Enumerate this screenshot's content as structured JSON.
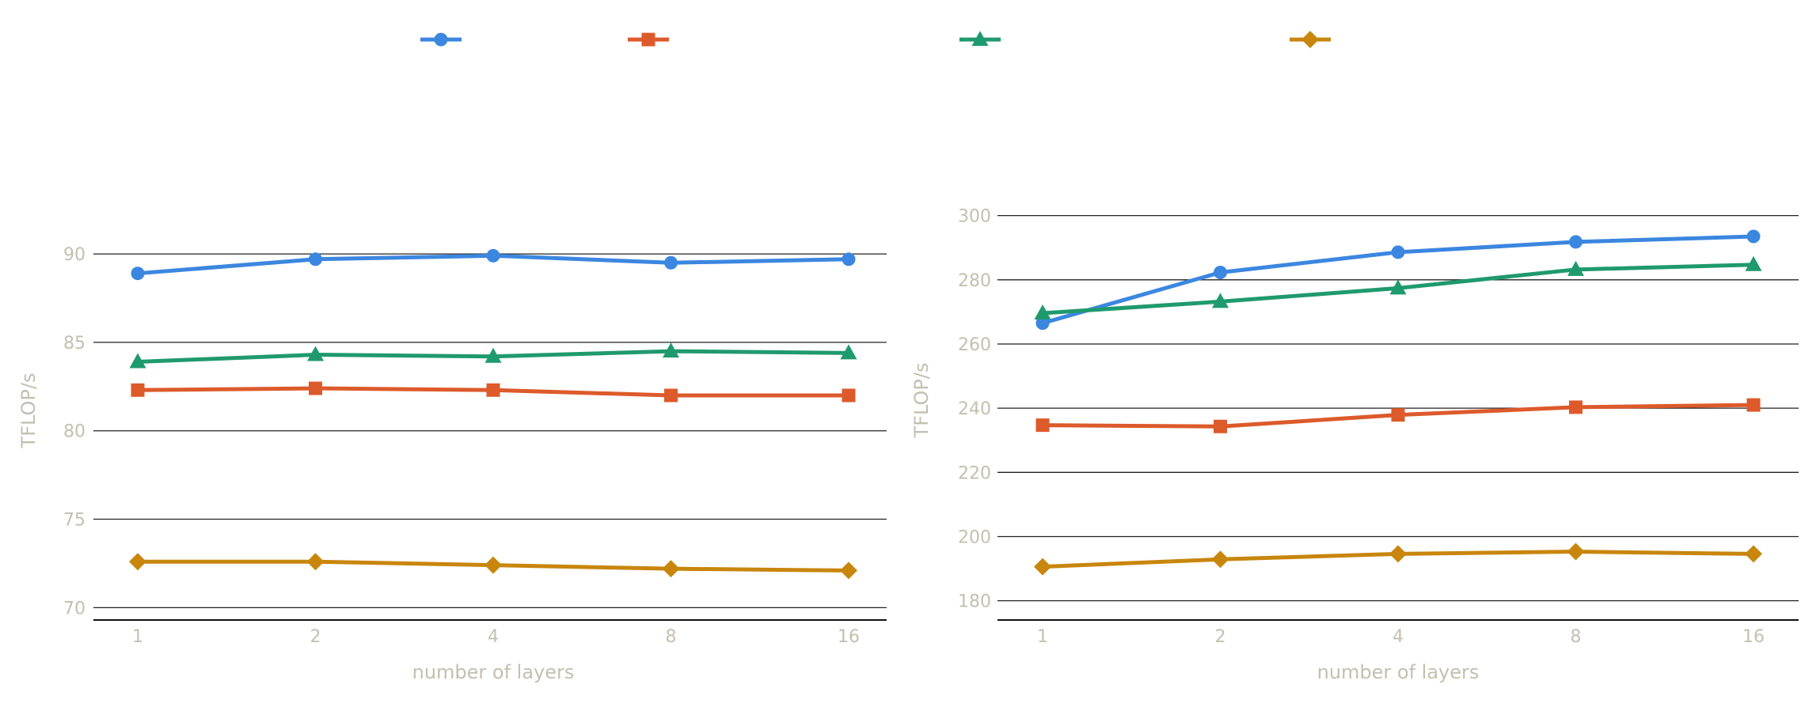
{
  "legend": {
    "items": [
      {
        "name": "",
        "marker": "circle",
        "color": "#3b87e0"
      },
      {
        "name": "",
        "marker": "square",
        "color": "#dd5a2b"
      },
      {
        "name": "",
        "marker": "triangle",
        "color": "#1f9a6e"
      },
      {
        "name": "",
        "marker": "diamond",
        "color": "#c8860d"
      }
    ]
  },
  "chart_data": [
    {
      "type": "line",
      "categories": [
        "1",
        "2",
        "4",
        "8",
        "16"
      ],
      "xlabel": "number of layers",
      "ylabel": "TFLOP/s",
      "ylim": [
        69.3,
        93
      ],
      "yticks": [
        70,
        75,
        80,
        85,
        90
      ],
      "grid": true,
      "legend_position": "top",
      "series": [
        {
          "marker": "circle",
          "color": "#3b87e0",
          "values": [
            88.9,
            89.7,
            89.9,
            89.5,
            89.7
          ]
        },
        {
          "marker": "square",
          "color": "#dd5a2b",
          "values": [
            82.3,
            82.4,
            82.3,
            82.0,
            82.0
          ]
        },
        {
          "marker": "triangle",
          "color": "#1f9a6e",
          "values": [
            83.9,
            84.3,
            84.2,
            84.5,
            84.4
          ]
        },
        {
          "marker": "diamond",
          "color": "#c8860d",
          "values": [
            72.6,
            72.6,
            72.4,
            72.2,
            72.1
          ]
        }
      ]
    },
    {
      "type": "line",
      "categories": [
        "1",
        "2",
        "4",
        "8",
        "16"
      ],
      "xlabel": "number of layers",
      "ylabel": "TFLOP/s",
      "ylim": [
        174,
        311
      ],
      "yticks": [
        180,
        200,
        220,
        240,
        260,
        280,
        300
      ],
      "grid": true,
      "legend_position": "top",
      "series": [
        {
          "marker": "circle",
          "color": "#3b87e0",
          "values": [
            266.5,
            282.3,
            288.6,
            291.8,
            293.5
          ]
        },
        {
          "marker": "square",
          "color": "#dd5a2b",
          "values": [
            234.7,
            234.3,
            237.9,
            240.3,
            241.0
          ]
        },
        {
          "marker": "triangle",
          "color": "#1f9a6e",
          "values": [
            269.6,
            273.2,
            277.4,
            283.2,
            284.7
          ]
        },
        {
          "marker": "diamond",
          "color": "#c8860d",
          "values": [
            190.6,
            192.9,
            194.6,
            195.3,
            194.6
          ]
        }
      ]
    }
  ]
}
